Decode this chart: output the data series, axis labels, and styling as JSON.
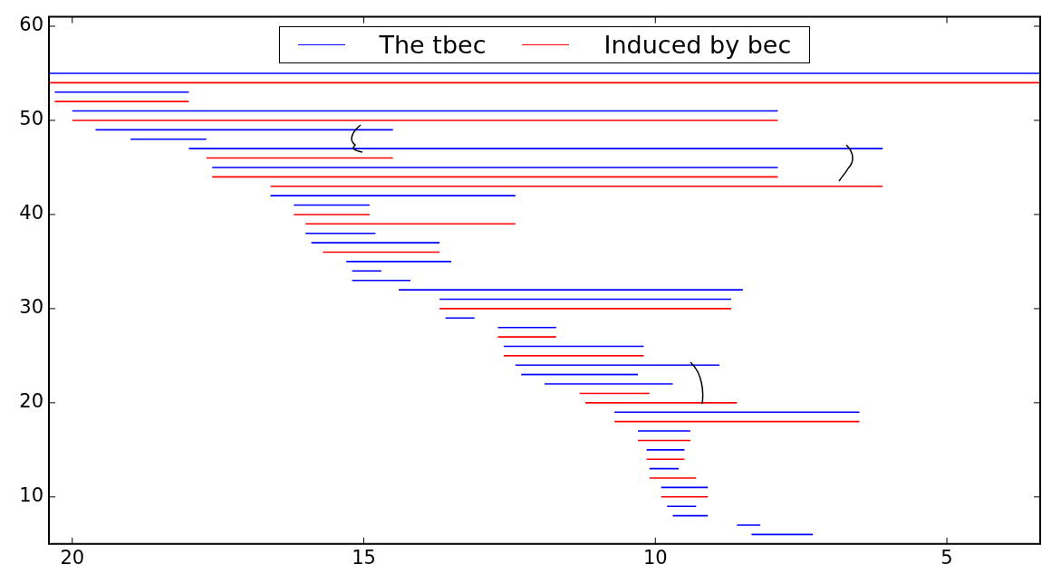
{
  "chart_data": {
    "type": "line",
    "legend": "top",
    "grid": false,
    "marker": "none",
    "line_style": "solid",
    "xlim": [
      20.4,
      3.4
    ],
    "xticks": [
      20,
      15,
      10,
      5
    ],
    "ylim": [
      5,
      61
    ],
    "yticks": [
      10,
      20,
      30,
      40,
      50,
      60
    ],
    "series": [
      {
        "name": "The tbec",
        "color": "#0000ff",
        "x": [
          20.4,
          3.4
        ],
        "values": [
          55,
          55
        ]
      },
      {
        "name": "Induced by bec",
        "color": "#ff0000",
        "x": [
          20.4,
          3.4
        ],
        "values": [
          54,
          54
        ]
      },
      {
        "color": "#0000ff",
        "x": [
          20.3,
          18.0
        ],
        "values": [
          53,
          53
        ]
      },
      {
        "color": "#ff0000",
        "x": [
          20.3,
          18.0
        ],
        "values": [
          52,
          52
        ]
      },
      {
        "color": "#0000ff",
        "x": [
          20.0,
          7.9
        ],
        "values": [
          51,
          51
        ]
      },
      {
        "color": "#ff0000",
        "x": [
          20.0,
          7.9
        ],
        "values": [
          50,
          50
        ]
      },
      {
        "color": "#0000ff",
        "x": [
          19.6,
          14.5
        ],
        "values": [
          49,
          49
        ]
      },
      {
        "color": "#0000ff",
        "x": [
          19.0,
          17.7
        ],
        "values": [
          48,
          48
        ]
      },
      {
        "color": "#0000ff",
        "x": [
          18.0,
          6.1
        ],
        "values": [
          47,
          47
        ]
      },
      {
        "color": "#ff0000",
        "x": [
          17.7,
          14.5
        ],
        "values": [
          46,
          46
        ]
      },
      {
        "color": "#0000ff",
        "x": [
          17.6,
          7.9
        ],
        "values": [
          45,
          45
        ]
      },
      {
        "color": "#ff0000",
        "x": [
          17.6,
          7.9
        ],
        "values": [
          44,
          44
        ]
      },
      {
        "color": "#ff0000",
        "x": [
          16.6,
          6.1
        ],
        "values": [
          43,
          43
        ]
      },
      {
        "color": "#0000ff",
        "x": [
          16.6,
          12.4
        ],
        "values": [
          42,
          42
        ]
      },
      {
        "color": "#0000ff",
        "x": [
          16.2,
          14.9
        ],
        "values": [
          41,
          41
        ]
      },
      {
        "color": "#ff0000",
        "x": [
          16.2,
          14.9
        ],
        "values": [
          40,
          40
        ]
      },
      {
        "color": "#ff0000",
        "x": [
          16.0,
          12.4
        ],
        "values": [
          39,
          39
        ]
      },
      {
        "color": "#0000ff",
        "x": [
          16.0,
          14.8
        ],
        "values": [
          38,
          38
        ]
      },
      {
        "color": "#0000ff",
        "x": [
          15.9,
          13.7
        ],
        "values": [
          37,
          37
        ]
      },
      {
        "color": "#ff0000",
        "x": [
          15.7,
          13.7
        ],
        "values": [
          36,
          36
        ]
      },
      {
        "color": "#0000ff",
        "x": [
          15.3,
          13.5
        ],
        "values": [
          35,
          35
        ]
      },
      {
        "color": "#0000ff",
        "x": [
          15.2,
          14.7
        ],
        "values": [
          34,
          34
        ]
      },
      {
        "color": "#0000ff",
        "x": [
          15.2,
          14.2
        ],
        "values": [
          33,
          33
        ]
      },
      {
        "color": "#0000ff",
        "x": [
          14.4,
          8.5
        ],
        "values": [
          32,
          32
        ]
      },
      {
        "color": "#0000ff",
        "x": [
          13.7,
          8.7
        ],
        "values": [
          31,
          31
        ]
      },
      {
        "color": "#ff0000",
        "x": [
          13.7,
          8.7
        ],
        "values": [
          30,
          30
        ]
      },
      {
        "color": "#0000ff",
        "x": [
          13.6,
          13.1
        ],
        "values": [
          29,
          29
        ]
      },
      {
        "color": "#0000ff",
        "x": [
          12.7,
          11.7
        ],
        "values": [
          28,
          28
        ]
      },
      {
        "color": "#ff0000",
        "x": [
          12.7,
          11.7
        ],
        "values": [
          27,
          27
        ]
      },
      {
        "color": "#0000ff",
        "x": [
          12.6,
          10.2
        ],
        "values": [
          26,
          26
        ]
      },
      {
        "color": "#ff0000",
        "x": [
          12.6,
          10.2
        ],
        "values": [
          25,
          25
        ]
      },
      {
        "color": "#0000ff",
        "x": [
          12.4,
          8.9
        ],
        "values": [
          24,
          24
        ]
      },
      {
        "color": "#0000ff",
        "x": [
          12.3,
          10.3
        ],
        "values": [
          23,
          23
        ]
      },
      {
        "color": "#0000ff",
        "x": [
          11.9,
          9.7
        ],
        "values": [
          22,
          22
        ]
      },
      {
        "color": "#ff0000",
        "x": [
          11.3,
          10.1
        ],
        "values": [
          21,
          21
        ]
      },
      {
        "color": "#ff0000",
        "x": [
          11.2,
          8.6
        ],
        "values": [
          20,
          20
        ]
      },
      {
        "color": "#0000ff",
        "x": [
          10.7,
          6.5
        ],
        "values": [
          19,
          19
        ]
      },
      {
        "color": "#ff0000",
        "x": [
          10.7,
          6.5
        ],
        "values": [
          18,
          18
        ]
      },
      {
        "color": "#0000ff",
        "x": [
          10.3,
          9.4
        ],
        "values": [
          17,
          17
        ]
      },
      {
        "color": "#ff0000",
        "x": [
          10.3,
          9.4
        ],
        "values": [
          16,
          16
        ]
      },
      {
        "color": "#0000ff",
        "x": [
          10.15,
          9.5
        ],
        "values": [
          15,
          15
        ]
      },
      {
        "color": "#ff0000",
        "x": [
          10.15,
          9.5
        ],
        "values": [
          14,
          14
        ]
      },
      {
        "color": "#0000ff",
        "x": [
          10.1,
          9.6
        ],
        "values": [
          13,
          13
        ]
      },
      {
        "color": "#ff0000",
        "x": [
          10.1,
          9.3
        ],
        "values": [
          12,
          12
        ]
      },
      {
        "color": "#0000ff",
        "x": [
          9.9,
          9.1
        ],
        "values": [
          11,
          11
        ]
      },
      {
        "color": "#ff0000",
        "x": [
          9.9,
          9.1
        ],
        "values": [
          10,
          10
        ]
      },
      {
        "color": "#0000ff",
        "x": [
          9.8,
          9.3
        ],
        "values": [
          9,
          9
        ]
      },
      {
        "color": "#0000ff",
        "x": [
          9.7,
          9.1
        ],
        "values": [
          8,
          8
        ]
      },
      {
        "color": "#0000ff",
        "x": [
          8.6,
          8.2
        ],
        "values": [
          7,
          7
        ]
      },
      {
        "color": "#0000ff",
        "x": [
          8.35,
          7.3
        ],
        "values": [
          6,
          6
        ]
      }
    ]
  }
}
